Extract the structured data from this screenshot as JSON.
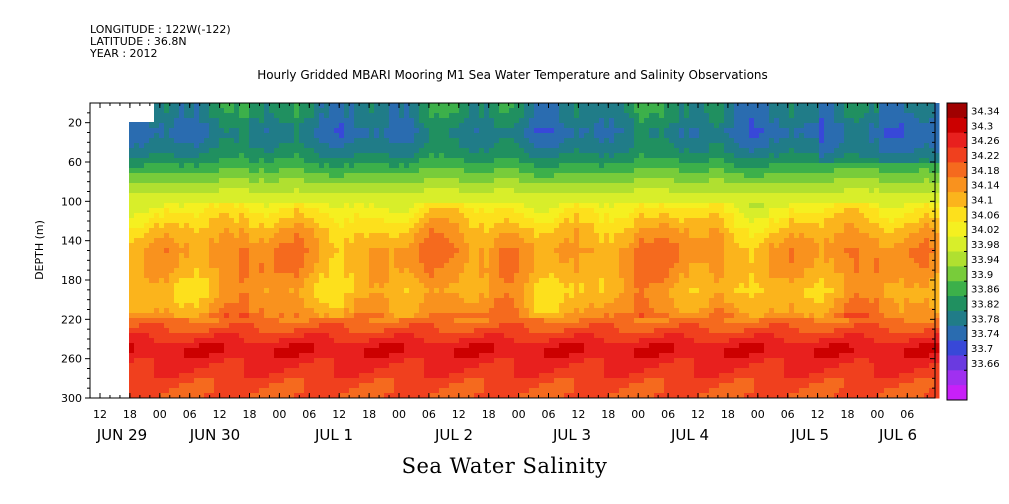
{
  "header": {
    "longitude": "LONGITUDE : 122W(-122)",
    "latitude": "LATITUDE : 36.8N",
    "year": "YEAR : 2012",
    "title": "Hourly Gridded MBARI Mooring M1 Sea Water Temperature and Salinity Observations"
  },
  "footer": {
    "title": "Sea Water Salinity"
  },
  "chart_data": {
    "type": "heatmap",
    "title": "Hourly Gridded MBARI Mooring M1 Sea Water Temperature and Salinity Observations",
    "xlabel": "",
    "ylabel": "DEPTH (m)",
    "variable": "Sea Water Salinity",
    "ylim": [
      300,
      0
    ],
    "y_ticks": [
      20,
      60,
      100,
      140,
      180,
      220,
      260,
      300
    ],
    "hour_ticks": [
      "12",
      "18",
      "00",
      "06",
      "12",
      "18",
      "00",
      "06",
      "12",
      "18",
      "00",
      "06",
      "12",
      "18",
      "00",
      "06",
      "12",
      "18",
      "00",
      "06",
      "12",
      "18",
      "00",
      "06",
      "12",
      "18",
      "00",
      "06"
    ],
    "day_ticks": [
      "JUN 29",
      "JUN 30",
      "JUL  1",
      "JUL  2",
      "JUL  3",
      "JUL  4",
      "JUL  5",
      "JUL  6"
    ],
    "colorbar": {
      "levels": [
        "34.34",
        "34.3",
        "34.26",
        "34.22",
        "34.18",
        "34.14",
        "34.1",
        "34.06",
        "34.02",
        "33.98",
        "33.94",
        "33.9",
        "33.86",
        "33.82",
        "33.78",
        "33.74",
        "33.7",
        "33.66"
      ],
      "colors": [
        "#a00000",
        "#cc0000",
        "#e8201e",
        "#f0401e",
        "#f56a1e",
        "#f9921e",
        "#fbb41c",
        "#fde01c",
        "#f5f020",
        "#d8ee2a",
        "#b0e030",
        "#78cc3a",
        "#3cb04a",
        "#209060",
        "#207c88",
        "#2a6cb0",
        "#3848d8",
        "#6a3ae0",
        "#a030f0",
        "#c820f8"
      ]
    },
    "depth_profile": [
      {
        "depth": 10,
        "salinity": 33.82
      },
      {
        "depth": 30,
        "salinity": 33.78
      },
      {
        "depth": 50,
        "salinity": 33.82
      },
      {
        "depth": 70,
        "salinity": 33.9
      },
      {
        "depth": 90,
        "salinity": 33.98
      },
      {
        "depth": 110,
        "salinity": 34.06
      },
      {
        "depth": 130,
        "salinity": 34.12
      },
      {
        "depth": 150,
        "salinity": 34.16
      },
      {
        "depth": 170,
        "salinity": 34.15
      },
      {
        "depth": 190,
        "salinity": 34.12
      },
      {
        "depth": 210,
        "salinity": 34.15
      },
      {
        "depth": 230,
        "salinity": 34.22
      },
      {
        "depth": 250,
        "salinity": 34.3
      },
      {
        "depth": 270,
        "salinity": 34.26
      },
      {
        "depth": 290,
        "salinity": 34.22
      }
    ]
  }
}
